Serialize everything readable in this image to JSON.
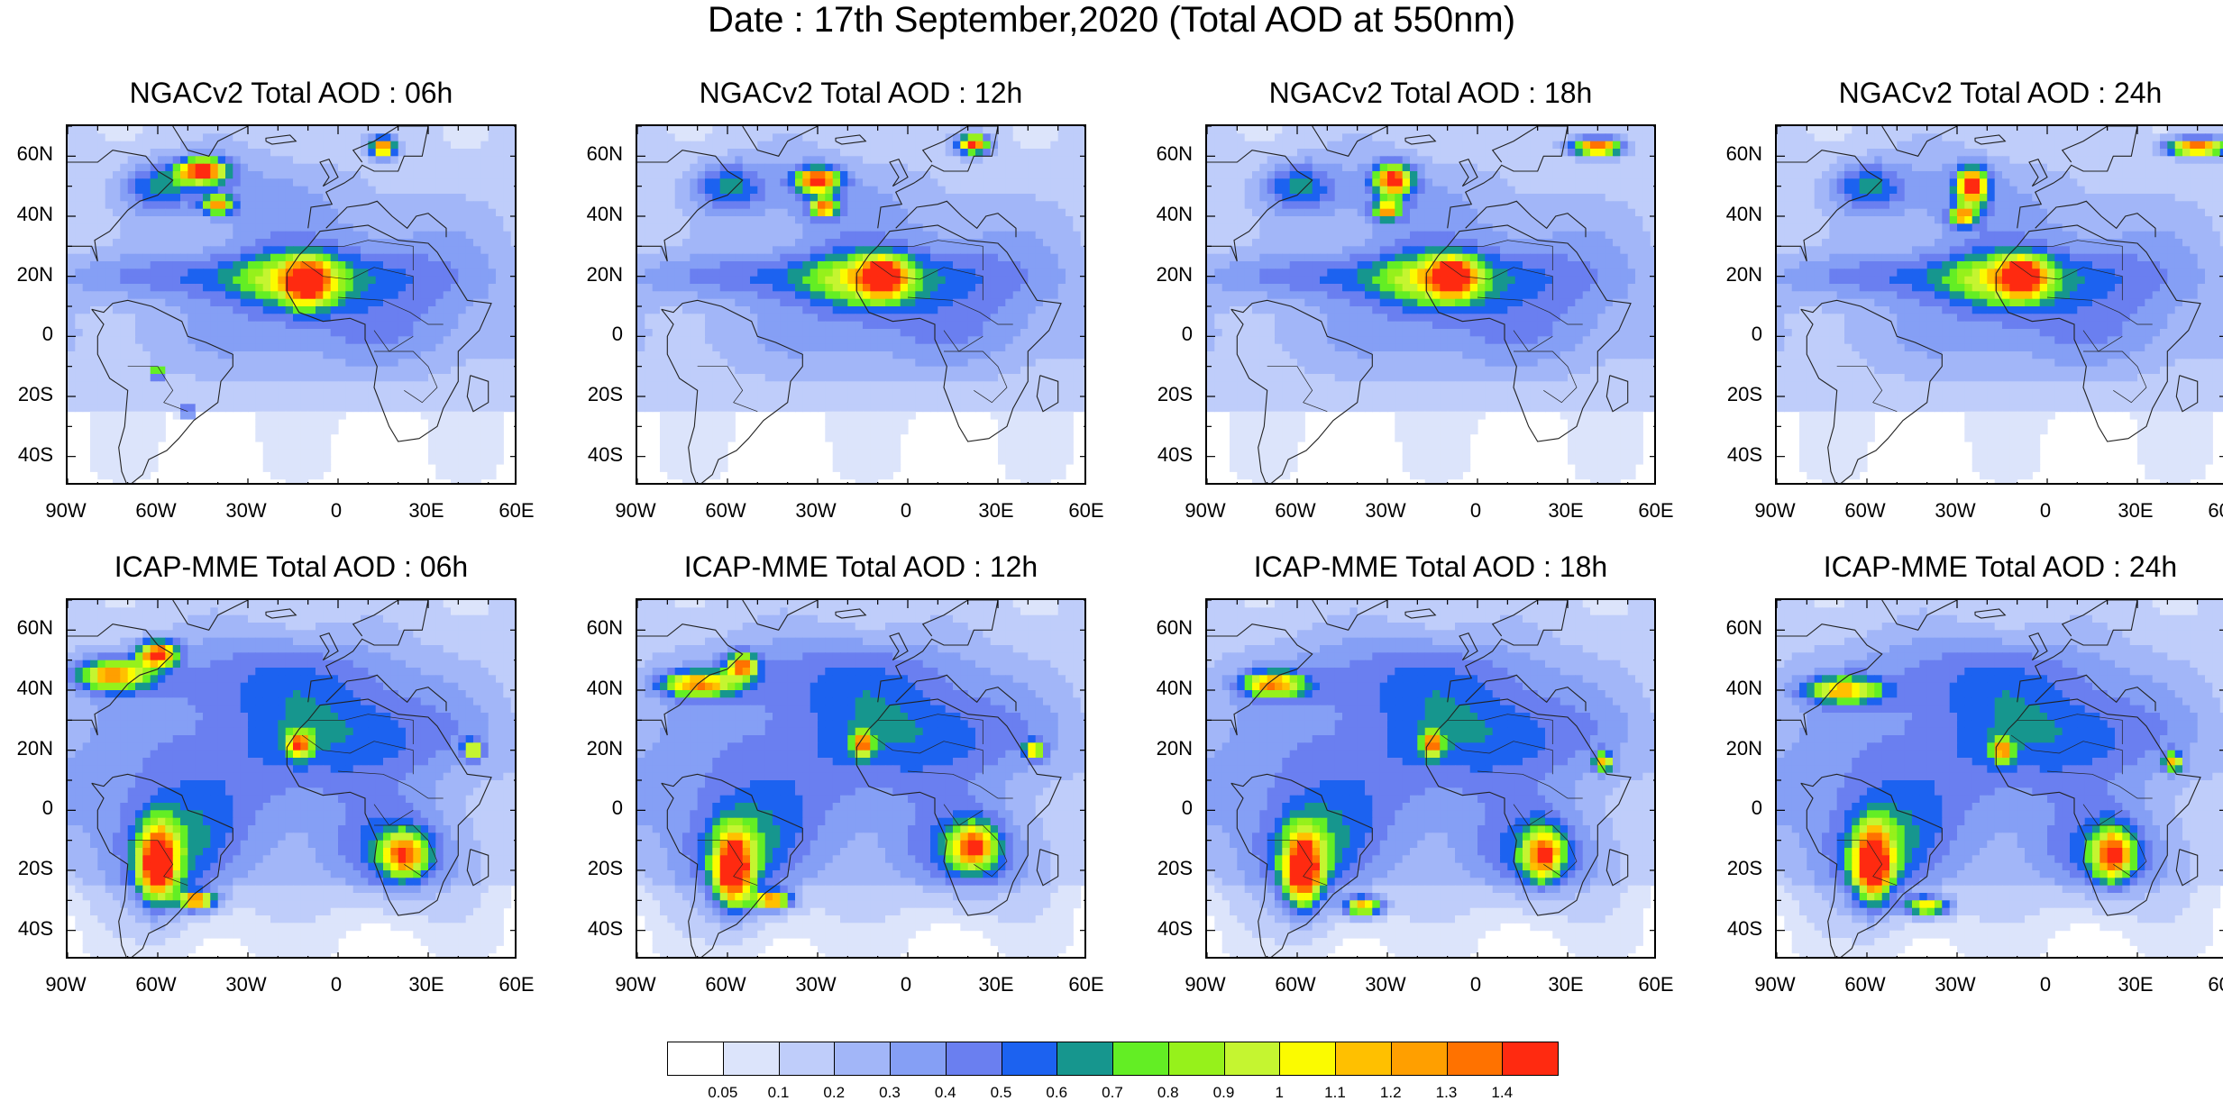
{
  "title": "Date : 17th September,2020 (Total AOD at 550nm)",
  "panels": [
    {
      "title": "NGACv2 Total AOD : 06h",
      "model": "NGACv2",
      "hour": 6
    },
    {
      "title": "NGACv2 Total AOD : 12h",
      "model": "NGACv2",
      "hour": 12
    },
    {
      "title": "NGACv2 Total AOD : 18h",
      "model": "NGACv2",
      "hour": 18
    },
    {
      "title": "NGACv2 Total AOD : 24h",
      "model": "NGACv2",
      "hour": 24
    },
    {
      "title": "ICAP-MME Total AOD : 06h",
      "model": "ICAP-MME",
      "hour": 6
    },
    {
      "title": "ICAP-MME Total AOD : 12h",
      "model": "ICAP-MME",
      "hour": 12
    },
    {
      "title": "ICAP-MME Total AOD : 18h",
      "model": "ICAP-MME",
      "hour": 18
    },
    {
      "title": "ICAP-MME Total AOD : 24h",
      "model": "ICAP-MME",
      "hour": 24
    }
  ],
  "lat_ticks": [
    "60N",
    "40N",
    "20N",
    "0",
    "20S",
    "40S"
  ],
  "lon_ticks": [
    "90W",
    "60W",
    "30W",
    "0",
    "30E",
    "60E"
  ],
  "colorbar": {
    "labels": [
      "0.05",
      "0.1",
      "0.2",
      "0.3",
      "0.4",
      "0.5",
      "0.6",
      "0.7",
      "0.8",
      "0.9",
      "1",
      "1.1",
      "1.2",
      "1.3",
      "1.4"
    ],
    "colors": [
      "#ffffff",
      "#dce4fb",
      "#bfcdfa",
      "#a2b6f8",
      "#859ff5",
      "#6a7ff0",
      "#1c62f0",
      "#16968e",
      "#63ee24",
      "#96f11b",
      "#c5f530",
      "#fbfb00",
      "#ffc000",
      "#ff9f00",
      "#ff7200",
      "#ff2a10"
    ]
  }
}
